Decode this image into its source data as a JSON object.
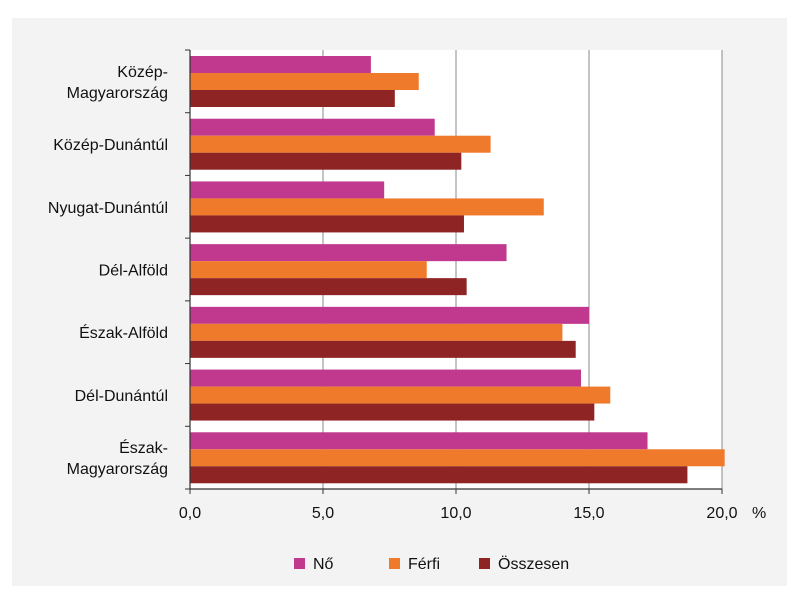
{
  "chart_data": {
    "type": "bar",
    "orientation": "horizontal",
    "categories": [
      [
        "Közép-",
        "Magyarország"
      ],
      [
        "Közép-Dunántúl"
      ],
      [
        "Nyugat-Dunántúl"
      ],
      [
        "Dél-Alföld"
      ],
      [
        "Észak-Alföld"
      ],
      [
        "Dél-Dunántúl"
      ],
      [
        "Észak-",
        "Magyarország"
      ]
    ],
    "series": [
      {
        "name": "Nő",
        "color": "#c0398f",
        "values": [
          6.8,
          9.2,
          7.3,
          11.9,
          15.0,
          14.7,
          17.2
        ]
      },
      {
        "name": "Férfi",
        "color": "#f07a2c",
        "values": [
          8.6,
          11.3,
          13.3,
          8.9,
          14.0,
          15.8,
          20.1
        ]
      },
      {
        "name": "Összesen",
        "color": "#8e2424",
        "values": [
          7.7,
          10.2,
          10.3,
          10.4,
          14.5,
          15.2,
          18.7
        ]
      }
    ],
    "xlim": [
      0,
      20
    ],
    "xticks": [
      0,
      5,
      10,
      15,
      20
    ],
    "xtick_labels": [
      "0,0",
      "5,0",
      "10,0",
      "15,0",
      "20,0"
    ],
    "xunit": "%",
    "grid": "vertical",
    "legend_position": "bottom"
  }
}
